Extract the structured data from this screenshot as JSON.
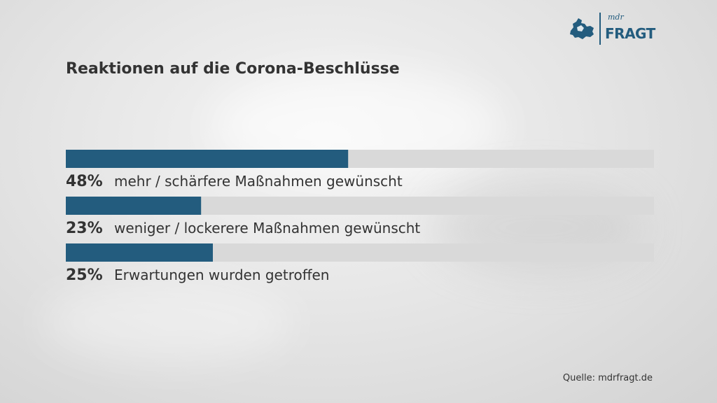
{
  "brand": {
    "logo_small": "mdr",
    "logo_large": "FRAGT",
    "color": "#235c7e"
  },
  "chart_data": {
    "type": "bar",
    "orientation": "horizontal",
    "title": "Reaktionen auf die Corona-Beschlüsse",
    "categories": [
      "mehr / schärfere Maßnahmen gewünscht",
      "weniger / lockerere Maßnahmen gewünscht",
      "Erwartungen wurden getroffen"
    ],
    "values": [
      48,
      23,
      25
    ],
    "value_labels": [
      "48%",
      "23%",
      "25%"
    ],
    "xlim": [
      0,
      100
    ],
    "bar_color": "#235c7e",
    "track_color": "#d9d9d9",
    "grid": false,
    "legend": "none"
  },
  "source": "Quelle: mdrfragt.de"
}
